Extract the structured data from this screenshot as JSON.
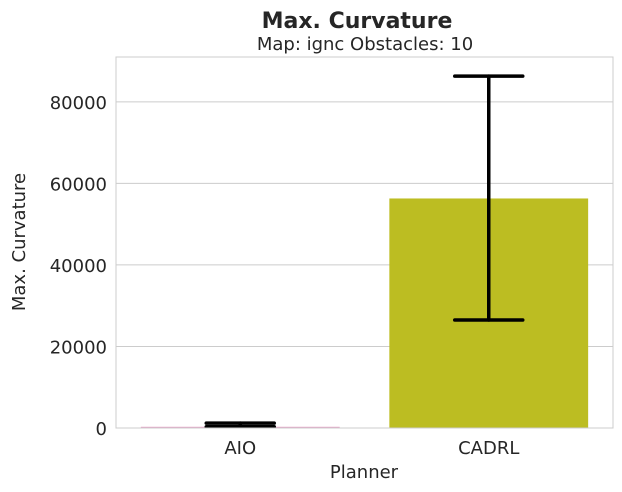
{
  "chart_data": {
    "type": "bar",
    "title": "Max. Curvature",
    "subtitle": "Map: ignc Obstacles: 10",
    "xlabel": "Planner",
    "ylabel": "Max. Curvature",
    "categories": [
      "AIO",
      "CADRL"
    ],
    "values": [
      300,
      56300
    ],
    "error_low": [
      300,
      26500
    ],
    "error_high": [
      1200,
      86300
    ],
    "bar_colors": [
      "#e8a0c8",
      "#bcbd22"
    ],
    "error_color": "#000000",
    "ylim": [
      0,
      91000
    ],
    "yticks": [
      0,
      20000,
      40000,
      60000,
      80000
    ],
    "ytick_labels": [
      "0",
      "20000",
      "40000",
      "60000",
      "80000"
    ],
    "grid": "horizontal",
    "legend": "none"
  }
}
